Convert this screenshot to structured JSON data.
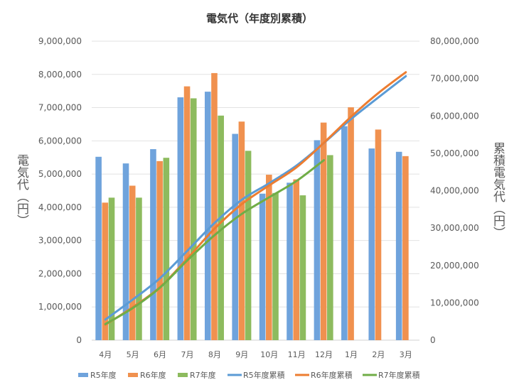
{
  "chart_data": {
    "type": "bar+line",
    "title": "電気代（年度別累積）",
    "ylabel": "電気代（円）",
    "y2label": "累積電気代（円）",
    "categories": [
      "4月",
      "5月",
      "6月",
      "7月",
      "8月",
      "9月",
      "10月",
      "11月",
      "12月",
      "1月",
      "2月",
      "3月"
    ],
    "ylim": [
      0,
      9000000
    ],
    "y2lim": [
      0,
      80000000
    ],
    "yticks": [
      "0",
      "1,000,000",
      "2,000,000",
      "3,000,000",
      "4,000,000",
      "5,000,000",
      "6,000,000",
      "7,000,000",
      "8,000,000",
      "9,000,000"
    ],
    "y2ticks": [
      "0",
      "10,000,000",
      "20,000,000",
      "30,000,000",
      "40,000,000",
      "50,000,000",
      "60,000,000",
      "70,000,000",
      "80,000,000"
    ],
    "grid": true,
    "legend": "bottom",
    "series": [
      {
        "name": "R5年度",
        "kind": "bar",
        "axis": "left",
        "color": "#6fa3dc",
        "values": [
          5520000,
          5320000,
          5750000,
          7310000,
          7480000,
          6210000,
          4410000,
          4740000,
          6020000,
          6440000,
          5770000,
          5670000
        ]
      },
      {
        "name": "R6年度",
        "kind": "bar",
        "axis": "left",
        "color": "#f0914f",
        "values": [
          4140000,
          4650000,
          5390000,
          7640000,
          8040000,
          6580000,
          4980000,
          4840000,
          6550000,
          7010000,
          6340000,
          5540000
        ]
      },
      {
        "name": "R7年度",
        "kind": "bar",
        "axis": "left",
        "color": "#8dbb5e",
        "values": [
          4290000,
          4290000,
          5490000,
          7280000,
          6760000,
          5700000,
          4430000,
          4360000,
          5570000,
          null,
          null,
          null
        ]
      },
      {
        "name": "R5年度累積",
        "kind": "line",
        "axis": "right",
        "color": "#5b9bd5",
        "values": [
          5520000,
          10840000,
          16590000,
          23900000,
          31380000,
          37590000,
          42000000,
          46740000,
          52760000,
          59200000,
          64970000,
          70640000
        ]
      },
      {
        "name": "R6年度累積",
        "kind": "line",
        "axis": "right",
        "color": "#ed7d31",
        "values": [
          4140000,
          8790000,
          14180000,
          21820000,
          29860000,
          36440000,
          41420000,
          46260000,
          52810000,
          59820000,
          66160000,
          71700000
        ]
      },
      {
        "name": "R7年度累積",
        "kind": "line",
        "axis": "right",
        "color": "#70ad47",
        "values": [
          4290000,
          8580000,
          14070000,
          21350000,
          28110000,
          33810000,
          38240000,
          42600000,
          48170000,
          null,
          null,
          null
        ]
      }
    ]
  }
}
